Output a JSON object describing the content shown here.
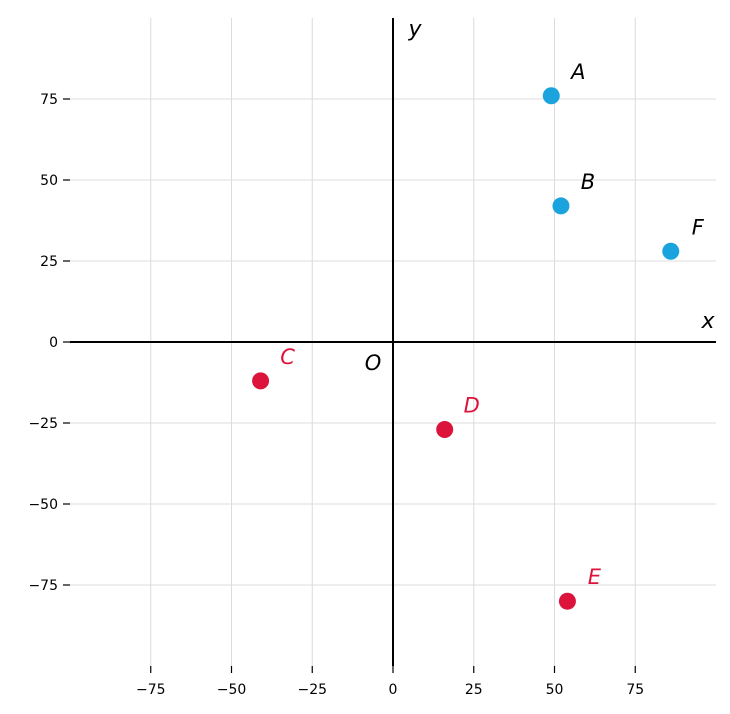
{
  "chart_data": {
    "type": "scatter",
    "xlim": [
      -100,
      100
    ],
    "ylim": [
      -100,
      100
    ],
    "grid": true,
    "x_ticks": [
      -75,
      -50,
      -25,
      0,
      25,
      50,
      75
    ],
    "y_ticks": [
      75,
      50,
      25,
      0,
      -25,
      -50,
      -75
    ],
    "tick_labels_x": [
      "−75",
      "−50",
      "−25",
      "0",
      "25",
      "50",
      "75"
    ],
    "tick_labels_y": [
      "75",
      "50",
      "25",
      "0",
      "−25",
      "−50",
      "−75"
    ],
    "xlabel": "x",
    "ylabel": "y",
    "origin_label": "O",
    "colors": {
      "positive": "#1ba3dd",
      "negative": "#dc143c",
      "axis": "#000000",
      "grid": "#dcdcdc"
    },
    "points": [
      {
        "label": "A",
        "x": 49,
        "y": 76,
        "group": "positive"
      },
      {
        "label": "B",
        "x": 52,
        "y": 42,
        "group": "positive"
      },
      {
        "label": "F",
        "x": 86,
        "y": 28,
        "group": "positive"
      },
      {
        "label": "C",
        "x": -41,
        "y": -12,
        "group": "negative"
      },
      {
        "label": "D",
        "x": 16,
        "y": -27,
        "group": "negative"
      },
      {
        "label": "E",
        "x": 54,
        "y": -80,
        "group": "negative"
      }
    ]
  }
}
